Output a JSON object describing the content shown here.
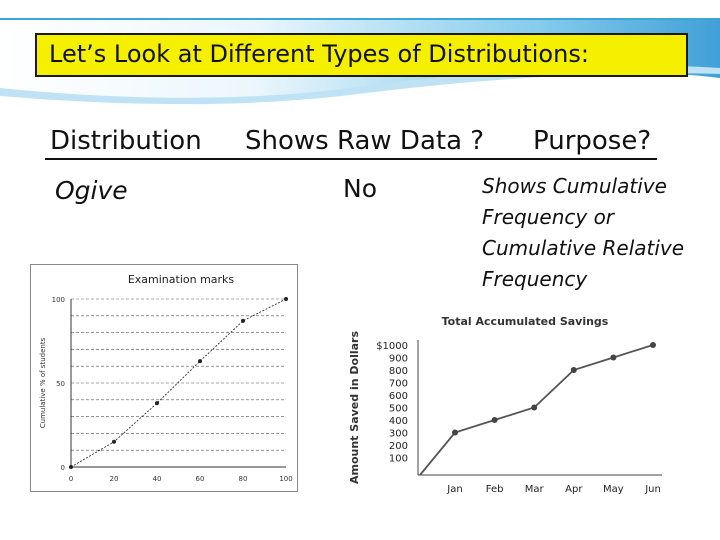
{
  "slide": {
    "title": "Let’s Look at Different Types of Distributions:",
    "headers": [
      "Distribution",
      "Shows Raw Data ?",
      "Purpose?"
    ],
    "row": {
      "distribution": "Ogive",
      "shows_raw_data": "No",
      "purpose_lines": [
        "Shows Cumulative",
        "Frequency or",
        "Cumulative Relative",
        "Frequency"
      ]
    }
  },
  "chart_data": [
    {
      "type": "line",
      "title": "Examination marks",
      "xlabel": "",
      "ylabel": "Cumulative % of students",
      "x": [
        0,
        20,
        40,
        60,
        80,
        100
      ],
      "x_tick_labels": [
        "0",
        "20",
        "40",
        "60",
        "80",
        "100"
      ],
      "y_tick_labels": [
        "0",
        "50",
        "100"
      ],
      "series": [
        {
          "values": [
            0,
            15,
            38,
            63,
            87,
            100
          ]
        }
      ],
      "xlim": [
        0,
        100
      ],
      "ylim": [
        0,
        100
      ],
      "grid": true,
      "markers": true
    },
    {
      "type": "line",
      "title": "Total Accumulated Savings",
      "xlabel": "",
      "ylabel": "Amount Saved in Dollars",
      "categories": [
        "Jan",
        "Feb",
        "Mar",
        "Apr",
        "May",
        "Jun"
      ],
      "y_tick_labels": [
        "$1000",
        "900",
        "800",
        "700",
        "600",
        "500",
        "400",
        "300",
        "200",
        "100"
      ],
      "series": [
        {
          "values": [
            300,
            400,
            500,
            800,
            900,
            1000
          ]
        }
      ],
      "ylim": [
        0,
        1000
      ],
      "grid": false,
      "markers": true
    }
  ],
  "colors": {
    "title_bg": "#f5f000",
    "wave_blue": "#3aa6dc",
    "wave_light": "#bfe3f5"
  }
}
